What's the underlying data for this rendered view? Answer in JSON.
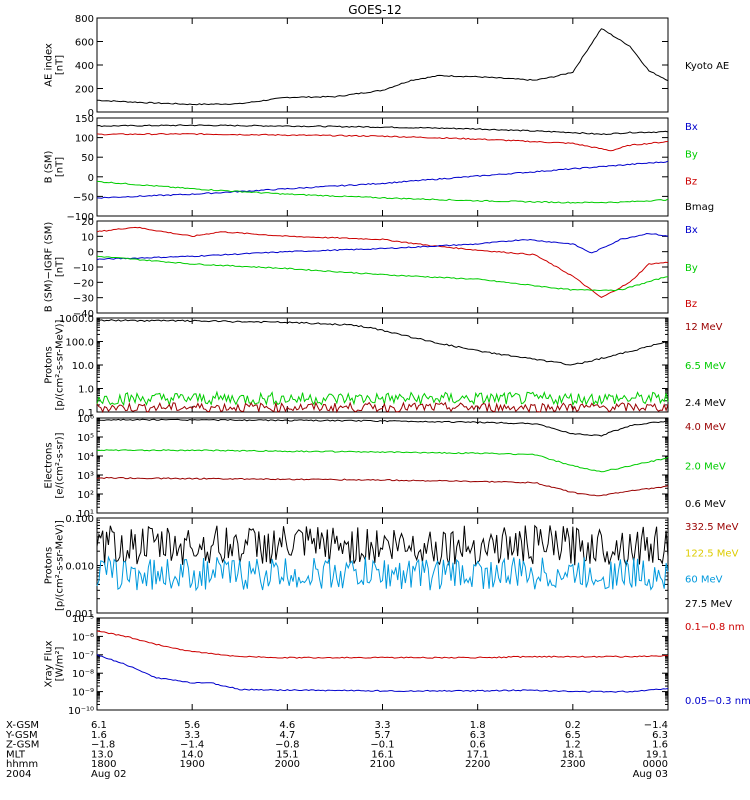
{
  "title": "GOES-12",
  "colors": {
    "black": "#000000",
    "red": "#cc0000",
    "blue": "#0000cc",
    "green": "#00cc00",
    "darkred": "#990000",
    "yellow": "#ddcc00",
    "cyan": "#0099dd"
  },
  "chart_data": [
    {
      "type": "line",
      "ylabel": "AE index\n[nT]",
      "ylim": [
        0,
        800
      ],
      "yscale": "linear",
      "yticks": [
        "0",
        "200",
        "400",
        "600",
        "800"
      ],
      "legend": [
        {
          "name": "Kyoto AE",
          "color": "black"
        }
      ],
      "series": [
        {
          "name": "Kyoto AE",
          "color": "black",
          "x": [
            0,
            0.5,
            1,
            1.5,
            2,
            2.5,
            3,
            3.3,
            3.6,
            4,
            4.3,
            4.6,
            4.8,
            5,
            5.3,
            5.6,
            5.8,
            6
          ],
          "y": [
            100,
            80,
            65,
            70,
            125,
            130,
            185,
            270,
            310,
            300,
            285,
            270,
            300,
            340,
            710,
            560,
            350,
            270
          ]
        }
      ]
    },
    {
      "type": "line",
      "ylabel": "B (SM)\n[nT]",
      "ylim": [
        -120,
        150
      ],
      "yscale": "linear",
      "yticks": [
        "−100",
        "−50",
        "0",
        "50",
        "100",
        "150"
      ],
      "legend": [
        {
          "name": "Bx",
          "color": "blue"
        },
        {
          "name": "By",
          "color": "green"
        },
        {
          "name": "Bz",
          "color": "red"
        },
        {
          "name": "Bmag",
          "color": "black"
        }
      ],
      "series": [
        {
          "name": "Bmag",
          "color": "black",
          "x": [
            0,
            1,
            2,
            3,
            4,
            5,
            5.3,
            5.6,
            6
          ],
          "y": [
            128,
            130,
            128,
            125,
            120,
            110,
            105,
            110,
            112
          ]
        },
        {
          "name": "Bz",
          "color": "red",
          "x": [
            0,
            1,
            2,
            3,
            4,
            5,
            5.4,
            5.6,
            6
          ],
          "y": [
            105,
            106,
            103,
            100,
            92,
            80,
            60,
            75,
            85
          ]
        },
        {
          "name": "Bx",
          "color": "blue",
          "x": [
            0,
            1,
            2,
            3,
            4,
            5,
            5.5,
            6
          ],
          "y": [
            -70,
            -60,
            -45,
            -30,
            -10,
            10,
            20,
            30
          ]
        },
        {
          "name": "By",
          "color": "green",
          "x": [
            0,
            1,
            2,
            3,
            4,
            5,
            5.5,
            6
          ],
          "y": [
            -25,
            -45,
            -60,
            -70,
            -78,
            -83,
            -82,
            -75
          ]
        }
      ]
    },
    {
      "type": "line",
      "ylabel": "B (SM)−IGRF (SM)\n[nT]",
      "ylim": [
        -40,
        20
      ],
      "yscale": "linear",
      "yticks": [
        "−40",
        "−30",
        "−20",
        "−10",
        "0",
        "10",
        "20"
      ],
      "legend": [
        {
          "name": "Bx",
          "color": "blue"
        },
        {
          "name": "By",
          "color": "green"
        },
        {
          "name": "Bz",
          "color": "red"
        }
      ],
      "series": [
        {
          "name": "Bz",
          "color": "red",
          "x": [
            0,
            0.4,
            1,
            1.3,
            2,
            3,
            3.5,
            4,
            4.6,
            5,
            5.3,
            5.6,
            5.8,
            6
          ],
          "y": [
            13,
            16,
            10,
            13,
            10,
            8,
            4,
            1,
            -2,
            -16,
            -30,
            -20,
            -8,
            -7
          ]
        },
        {
          "name": "Bx",
          "color": "blue",
          "x": [
            0,
            1,
            2,
            3,
            4,
            4.5,
            5,
            5.2,
            5.5,
            5.8,
            6
          ],
          "y": [
            -5,
            -3,
            0,
            2,
            5,
            8,
            5,
            -1,
            8,
            12,
            10
          ]
        },
        {
          "name": "By",
          "color": "green",
          "x": [
            0,
            1,
            2,
            3,
            4,
            5,
            5.5,
            6
          ],
          "y": [
            -3,
            -8,
            -11,
            -15,
            -18,
            -25,
            -25,
            -16
          ]
        }
      ]
    },
    {
      "type": "line",
      "ylabel": "Protons\n[p/(cm²-s-sr-MeV)]",
      "ylim": [
        0.1,
        1000
      ],
      "yscale": "log",
      "yticks": [
        "0.1",
        "1.0",
        "10.0",
        "100.0",
        "1000.0"
      ],
      "legend": [
        {
          "name": "12 MeV",
          "color": "darkred"
        },
        {
          "name": "6.5 MeV",
          "color": "green"
        },
        {
          "name": "2.4 MeV",
          "color": "black"
        }
      ],
      "series": [
        {
          "name": "2.4 MeV",
          "color": "black",
          "x": [
            0,
            1,
            2,
            2.7,
            3,
            3.5,
            4,
            4.5,
            5,
            5.5,
            6
          ],
          "y": [
            800,
            750,
            650,
            500,
            300,
            100,
            40,
            20,
            10,
            30,
            100
          ]
        },
        {
          "name": "6.5 MeV",
          "color": "green",
          "noise": true,
          "y_range": [
            0.2,
            0.7
          ]
        },
        {
          "name": "12 MeV",
          "color": "darkred",
          "noise": true,
          "y_range": [
            0.1,
            0.25
          ]
        }
      ]
    },
    {
      "type": "line",
      "ylabel": "Electrons\n[e/(cm²-s-sr)]",
      "ylim": [
        10,
        1000000
      ],
      "yscale": "log",
      "yticks": [
        "10¹",
        "10²",
        "10³",
        "10⁴",
        "10⁵",
        "10⁶"
      ],
      "legend": [
        {
          "name": "4.0 MeV",
          "color": "darkred"
        },
        {
          "name": "2.0 MeV",
          "color": "green"
        },
        {
          "name": "0.6 MeV",
          "color": "black"
        }
      ],
      "series": [
        {
          "name": "0.6 MeV",
          "color": "black",
          "x": [
            0,
            1,
            2,
            3,
            4,
            4.6,
            5,
            5.3,
            5.6,
            6
          ],
          "y": [
            800000,
            800000,
            750000,
            700000,
            600000,
            500000,
            150000,
            120000,
            400000,
            700000
          ]
        },
        {
          "name": "2.0 MeV",
          "color": "green",
          "x": [
            0,
            1,
            2,
            3,
            4,
            4.6,
            5,
            5.3,
            5.6,
            6
          ],
          "y": [
            20000,
            20000,
            18000,
            16000,
            14000,
            12000,
            3000,
            1500,
            3000,
            8000
          ]
        },
        {
          "name": "4.0 MeV",
          "color": "darkred",
          "x": [
            0,
            1,
            2,
            3,
            4,
            4.6,
            5,
            5.3,
            5.6,
            6
          ],
          "y": [
            700,
            650,
            600,
            550,
            450,
            400,
            120,
            80,
            150,
            250
          ]
        }
      ]
    },
    {
      "type": "line",
      "ylabel": "Protons\n[p/(cm²-s-sr-MeV)]",
      "ylim": [
        0.001,
        0.1
      ],
      "yscale": "log",
      "yticks": [
        "0.001",
        "0.010",
        "0.100"
      ],
      "legend": [
        {
          "name": "332.5 MeV",
          "color": "darkred"
        },
        {
          "name": "122.5 MeV",
          "color": "yellow"
        },
        {
          "name": "60 MeV",
          "color": "cyan"
        },
        {
          "name": "27.5 MeV",
          "color": "black"
        }
      ],
      "series": [
        {
          "name": "27.5 MeV",
          "color": "black",
          "noise": true,
          "y_range": [
            0.01,
            0.07
          ]
        },
        {
          "name": "60 MeV",
          "color": "cyan",
          "noise": true,
          "y_range": [
            0.003,
            0.015
          ]
        }
      ]
    },
    {
      "type": "line",
      "ylabel": "Xray Flux\n[W/m²]",
      "ylim": [
        1e-10,
        1e-05
      ],
      "yscale": "log",
      "yticks": [
        "10⁻¹⁰",
        "10⁻⁹",
        "10⁻⁸",
        "10⁻⁷",
        "10⁻⁶",
        "10⁻⁵"
      ],
      "legend": [
        {
          "name": "0.1−0.8 nm",
          "color": "red"
        },
        {
          "name": "0.05−0.3 nm",
          "color": "blue"
        }
      ],
      "series": [
        {
          "name": "0.1−0.8 nm",
          "color": "red",
          "x": [
            0,
            0.3,
            0.7,
            1,
            1.5,
            2,
            3,
            4,
            4.6,
            5,
            5.6,
            6
          ],
          "y": [
            2e-06,
            1e-06,
            3e-07,
            1.5e-07,
            8e-08,
            7e-08,
            7e-08,
            7e-08,
            8e-08,
            8e-08,
            8e-08,
            9e-08
          ]
        },
        {
          "name": "0.05−0.3 nm",
          "color": "blue",
          "x": [
            0,
            0.3,
            0.6,
            1,
            1.2,
            1.5,
            2,
            3,
            4,
            4.6,
            5,
            5.6,
            6
          ],
          "y": [
            1e-07,
            3e-08,
            6e-09,
            3e-09,
            3e-09,
            1.3e-09,
            1.2e-09,
            1.1e-09,
            1.1e-09,
            1.2e-09,
            1e-09,
            1e-09,
            1.5e-09
          ]
        }
      ]
    }
  ],
  "x_axis": {
    "xlim": [
      0,
      6
    ],
    "row_labels": [
      "X-GSM",
      "Y-GSM",
      "Z-GSM",
      "MLT",
      "hhmm",
      "2004"
    ],
    "columns": [
      {
        "x": 0,
        "values": [
          "6.1",
          "1.6",
          "−1.8",
          "13.0",
          "1800",
          "Aug 02"
        ]
      },
      {
        "x": 1,
        "values": [
          "5.6",
          "3.3",
          "−1.4",
          "14.0",
          "1900",
          ""
        ]
      },
      {
        "x": 2,
        "values": [
          "4.6",
          "4.7",
          "−0.8",
          "15.1",
          "2000",
          ""
        ]
      },
      {
        "x": 3,
        "values": [
          "3.3",
          "5.7",
          "−0.1",
          "16.1",
          "2100",
          ""
        ]
      },
      {
        "x": 4,
        "values": [
          "1.8",
          "6.3",
          "0.6",
          "17.1",
          "2200",
          ""
        ]
      },
      {
        "x": 5,
        "values": [
          "0.2",
          "6.5",
          "1.2",
          "18.1",
          "2300",
          ""
        ]
      },
      {
        "x": 6,
        "values": [
          "−1.4",
          "6.3",
          "1.6",
          "19.1",
          "0000",
          "Aug 03"
        ]
      }
    ]
  }
}
